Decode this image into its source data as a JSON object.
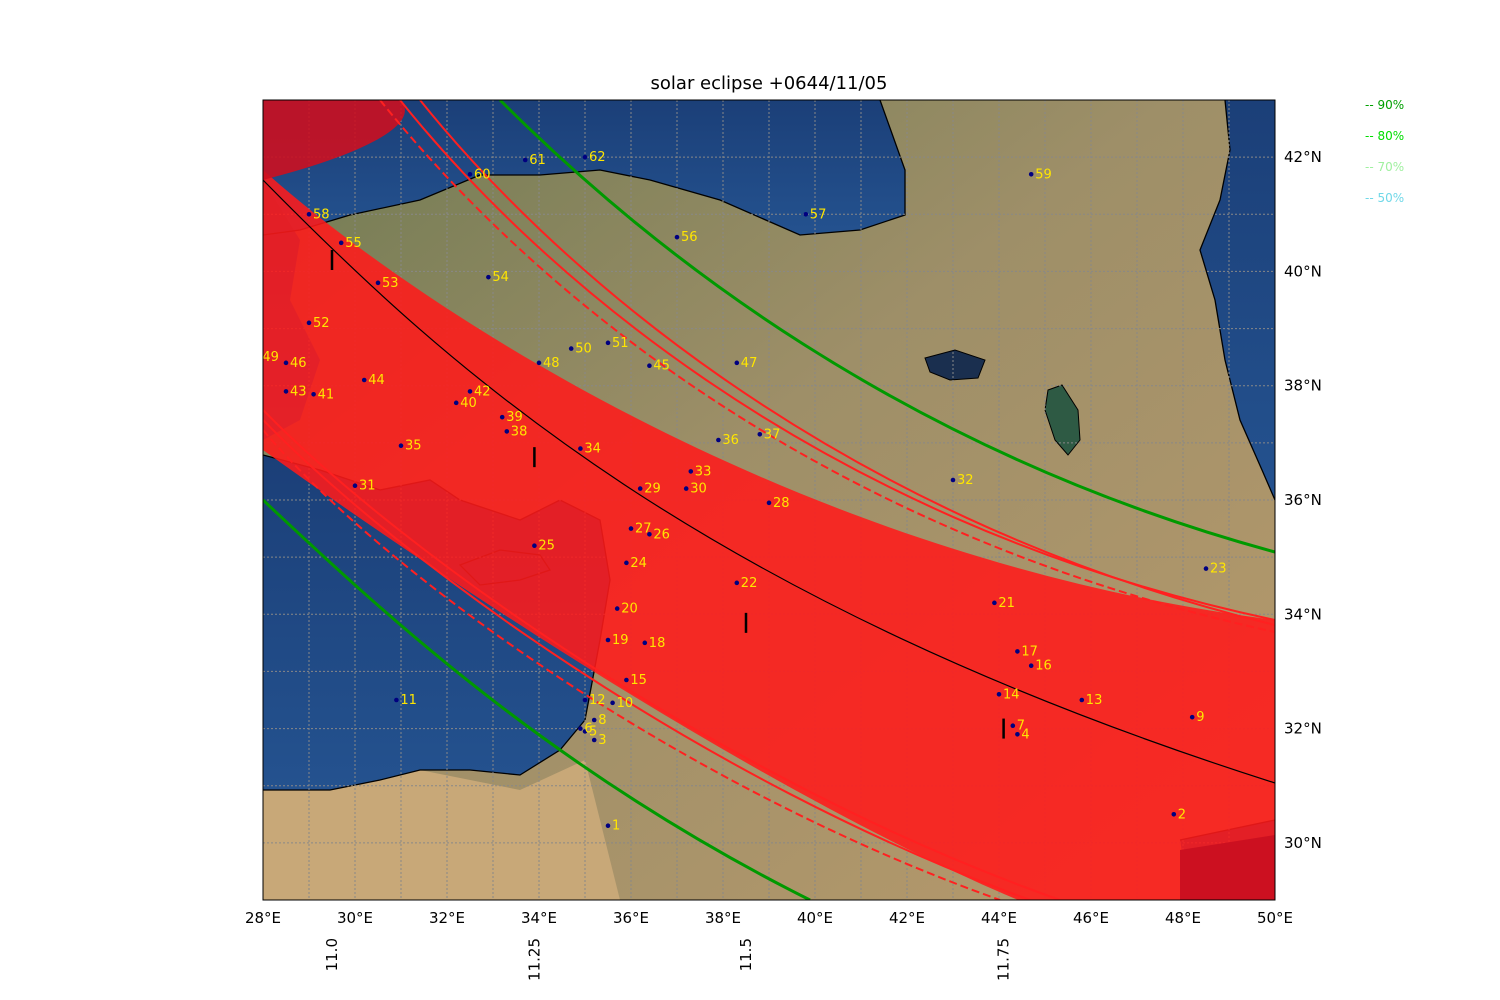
{
  "title": "solar eclipse +0644/11/05",
  "map": {
    "lon_range": [
      28,
      50
    ],
    "lat_range": [
      29.0,
      43.0
    ],
    "lon_ticks": [
      28,
      30,
      32,
      34,
      36,
      38,
      40,
      42,
      44,
      46,
      48,
      50
    ],
    "lon_tick_labels": [
      "28°E",
      "30°E",
      "32°E",
      "34°E",
      "36°E",
      "38°E",
      "40°E",
      "42°E",
      "44°E",
      "46°E",
      "48°E",
      "50°E"
    ],
    "lat_ticks": [
      30,
      32,
      34,
      36,
      38,
      40,
      42
    ],
    "lat_tick_labels": [
      "30°N",
      "32°N",
      "34°N",
      "36°N",
      "38°N",
      "40°N",
      "42°N"
    ],
    "time_ticks": [
      {
        "label": "11.0",
        "lon": 29.5,
        "lat": 40.2
      },
      {
        "label": "11.25",
        "lon": 33.9,
        "lat": 36.75
      },
      {
        "label": "11.5",
        "lon": 38.5,
        "lat": 33.85
      },
      {
        "label": "11.75",
        "lon": 44.1,
        "lat": 32.0
      }
    ],
    "colors": {
      "totality": "#ff1a1a",
      "band_90": "#009900",
      "central_line": "#000000",
      "point": "#000080",
      "label": "#ffe600",
      "sea": "#1a4780",
      "land": "#9a8a68"
    }
  },
  "legend": [
    {
      "label": "-- 90%",
      "color": "#00a000"
    },
    {
      "label": "-- 80%",
      "color": "#00dd00"
    },
    {
      "label": "-- 70%",
      "color": "#a0f0a0"
    },
    {
      "label": "-- 50%",
      "color": "#70d8e8"
    }
  ],
  "points": [
    {
      "id": "1",
      "lon": 35.5,
      "lat": 30.3
    },
    {
      "id": "2",
      "lon": 47.8,
      "lat": 30.5
    },
    {
      "id": "3",
      "lon": 35.2,
      "lat": 31.8
    },
    {
      "id": "4",
      "lon": 44.4,
      "lat": 31.9
    },
    {
      "id": "5",
      "lon": 35.0,
      "lat": 31.95
    },
    {
      "id": "6",
      "lon": 34.9,
      "lat": 32.0
    },
    {
      "id": "7",
      "lon": 44.3,
      "lat": 32.05
    },
    {
      "id": "8",
      "lon": 35.2,
      "lat": 32.15
    },
    {
      "id": "9",
      "lon": 48.2,
      "lat": 32.2
    },
    {
      "id": "10",
      "lon": 35.6,
      "lat": 32.45
    },
    {
      "id": "11",
      "lon": 30.9,
      "lat": 32.5
    },
    {
      "id": "12",
      "lon": 35.0,
      "lat": 32.5
    },
    {
      "id": "13",
      "lon": 45.8,
      "lat": 32.5
    },
    {
      "id": "14",
      "lon": 44.0,
      "lat": 32.6
    },
    {
      "id": "15",
      "lon": 35.9,
      "lat": 32.85
    },
    {
      "id": "16",
      "lon": 44.7,
      "lat": 33.1
    },
    {
      "id": "17",
      "lon": 44.4,
      "lat": 33.35
    },
    {
      "id": "18",
      "lon": 36.3,
      "lat": 33.5
    },
    {
      "id": "19",
      "lon": 35.5,
      "lat": 33.55
    },
    {
      "id": "20",
      "lon": 35.7,
      "lat": 34.1
    },
    {
      "id": "21",
      "lon": 43.9,
      "lat": 34.2
    },
    {
      "id": "22",
      "lon": 38.3,
      "lat": 34.55
    },
    {
      "id": "23",
      "lon": 48.5,
      "lat": 34.8
    },
    {
      "id": "24",
      "lon": 35.9,
      "lat": 34.9
    },
    {
      "id": "25",
      "lon": 33.9,
      "lat": 35.2
    },
    {
      "id": "26",
      "lon": 36.4,
      "lat": 35.4
    },
    {
      "id": "27",
      "lon": 36.0,
      "lat": 35.5
    },
    {
      "id": "28",
      "lon": 39.0,
      "lat": 35.95
    },
    {
      "id": "29",
      "lon": 36.2,
      "lat": 36.2
    },
    {
      "id": "30",
      "lon": 37.2,
      "lat": 36.2
    },
    {
      "id": "31",
      "lon": 30.0,
      "lat": 36.25
    },
    {
      "id": "32",
      "lon": 43.0,
      "lat": 36.35
    },
    {
      "id": "33",
      "lon": 37.3,
      "lat": 36.5
    },
    {
      "id": "34",
      "lon": 34.9,
      "lat": 36.9
    },
    {
      "id": "35",
      "lon": 31.0,
      "lat": 36.95
    },
    {
      "id": "36",
      "lon": 37.9,
      "lat": 37.05
    },
    {
      "id": "37",
      "lon": 38.8,
      "lat": 37.15
    },
    {
      "id": "38",
      "lon": 33.3,
      "lat": 37.2
    },
    {
      "id": "39",
      "lon": 33.2,
      "lat": 37.45
    },
    {
      "id": "40",
      "lon": 32.2,
      "lat": 37.7
    },
    {
      "id": "41",
      "lon": 29.1,
      "lat": 37.85
    },
    {
      "id": "42",
      "lon": 32.5,
      "lat": 37.9
    },
    {
      "id": "43",
      "lon": 28.5,
      "lat": 37.9
    },
    {
      "id": "44",
      "lon": 30.2,
      "lat": 38.1
    },
    {
      "id": "45",
      "lon": 36.4,
      "lat": 38.35
    },
    {
      "id": "46",
      "lon": 28.5,
      "lat": 38.4
    },
    {
      "id": "47",
      "lon": 38.3,
      "lat": 38.4
    },
    {
      "id": "48",
      "lon": 34.0,
      "lat": 38.4
    },
    {
      "id": "49",
      "lon": 27.9,
      "lat": 38.5
    },
    {
      "id": "50",
      "lon": 34.7,
      "lat": 38.65
    },
    {
      "id": "51",
      "lon": 35.5,
      "lat": 38.75
    },
    {
      "id": "52",
      "lon": 29.0,
      "lat": 39.1
    },
    {
      "id": "53",
      "lon": 30.5,
      "lat": 39.8
    },
    {
      "id": "54",
      "lon": 32.9,
      "lat": 39.9
    },
    {
      "id": "55",
      "lon": 29.7,
      "lat": 40.5
    },
    {
      "id": "56",
      "lon": 37.0,
      "lat": 40.6
    },
    {
      "id": "57",
      "lon": 39.8,
      "lat": 41.0
    },
    {
      "id": "58",
      "lon": 29.0,
      "lat": 41.0
    },
    {
      "id": "59",
      "lon": 44.7,
      "lat": 41.7
    },
    {
      "id": "60",
      "lon": 32.5,
      "lat": 41.7
    },
    {
      "id": "61",
      "lon": 33.7,
      "lat": 41.95
    },
    {
      "id": "62",
      "lon": 35.0,
      "lat": 42.0
    }
  ]
}
